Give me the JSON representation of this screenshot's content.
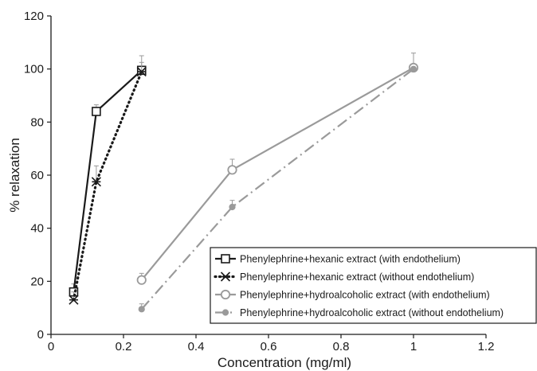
{
  "chart_data": {
    "type": "line",
    "xlabel": "Concentration (mg/ml)",
    "ylabel": "% relaxation",
    "xlim": [
      0,
      1.2
    ],
    "ylim": [
      0,
      120
    ],
    "xticks": [
      0,
      0.2,
      0.4,
      0.6,
      0.8,
      1,
      1.2
    ],
    "xtick_labels": [
      "0",
      "0.2",
      "0.4",
      "0.6",
      "0.8",
      "1",
      "1.2"
    ],
    "yticks": [
      0,
      20,
      40,
      60,
      80,
      100,
      120
    ],
    "ytick_labels": [
      "0",
      "20",
      "40",
      "60",
      "80",
      "100",
      "120"
    ],
    "grid": false,
    "legend_position": "bottom-right",
    "series": [
      {
        "name": "Phenylephrine+hexanic extract (with endothelium)",
        "x": [
          0.0625,
          0.125,
          0.25
        ],
        "y": [
          16,
          84,
          99.5
        ],
        "err": [
          3,
          2.5,
          3
        ],
        "color": "#1a1a1a",
        "line_style": "solid",
        "marker": "open-square"
      },
      {
        "name": "Phenylephrine+hexanic extract (without endothelium)",
        "x": [
          0.0625,
          0.125,
          0.25
        ],
        "y": [
          13,
          57.5,
          99
        ],
        "err": [
          3,
          6,
          6
        ],
        "color": "#1a1a1a",
        "line_style": "dotted",
        "marker": "asterisk"
      },
      {
        "name": "Phenylephrine+hydroalcoholic extract (with endothelium)",
        "x": [
          0.25,
          0.5,
          1
        ],
        "y": [
          20.5,
          62,
          100.5
        ],
        "err": [
          2.5,
          4,
          5.5
        ],
        "color": "#9a9a9a",
        "line_style": "solid",
        "marker": "open-circle"
      },
      {
        "name": "Phenylephrine+hydroalcoholic extract (without endothelium)",
        "x": [
          0.25,
          0.5,
          1
        ],
        "y": [
          9.5,
          48,
          100
        ],
        "err": [
          2,
          2.5,
          0
        ],
        "color": "#9a9a9a",
        "line_style": "dash-dot",
        "marker": "filled-circle"
      }
    ]
  }
}
